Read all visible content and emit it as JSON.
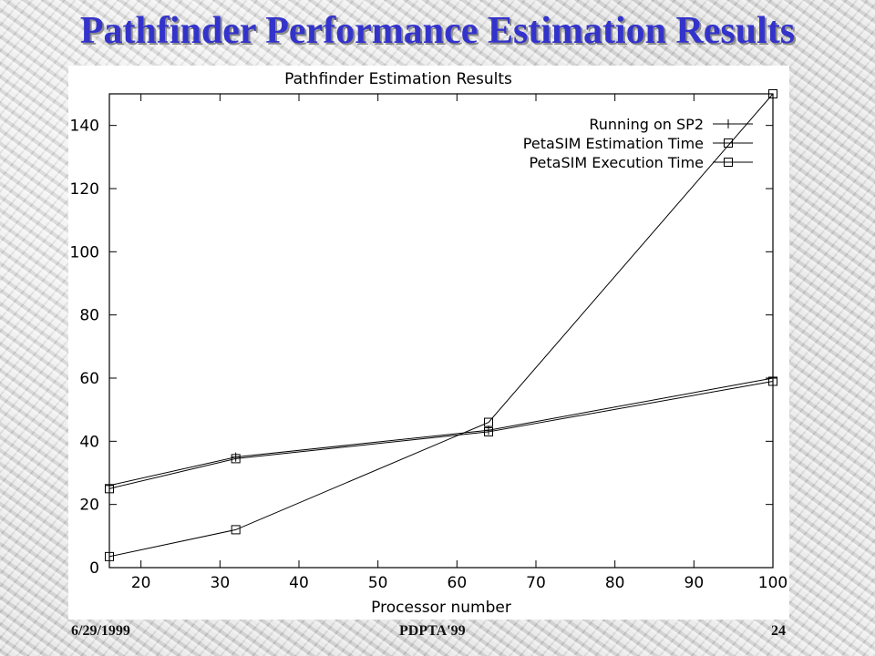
{
  "slide": {
    "title": "Pathfinder Performance Estimation Results",
    "footer_date": "6/29/1999",
    "footer_conference": "PDPTA'99",
    "footer_page": "24"
  },
  "chart_data": {
    "type": "line",
    "title": "Pathfinder Estimation Results",
    "xlabel": "Processor number",
    "ylabel": "",
    "xlim": [
      16,
      100
    ],
    "ylim": [
      0,
      150
    ],
    "xticks": [
      20,
      30,
      40,
      50,
      60,
      70,
      80,
      90,
      100
    ],
    "yticks": [
      0,
      20,
      40,
      60,
      80,
      100,
      120,
      140
    ],
    "legend_position": "top-right",
    "grid": false,
    "x": [
      16,
      32,
      64,
      100
    ],
    "series": [
      {
        "name": "Running on SP2",
        "marker": "plus",
        "values": [
          26,
          35,
          43.5,
          60
        ]
      },
      {
        "name": "PetaSIM Estimation Time",
        "marker": "square",
        "values": [
          25,
          34.5,
          43,
          59
        ]
      },
      {
        "name": "PetaSIM Execution Time",
        "marker": "square",
        "values": [
          3.5,
          12,
          46,
          150
        ]
      }
    ]
  }
}
